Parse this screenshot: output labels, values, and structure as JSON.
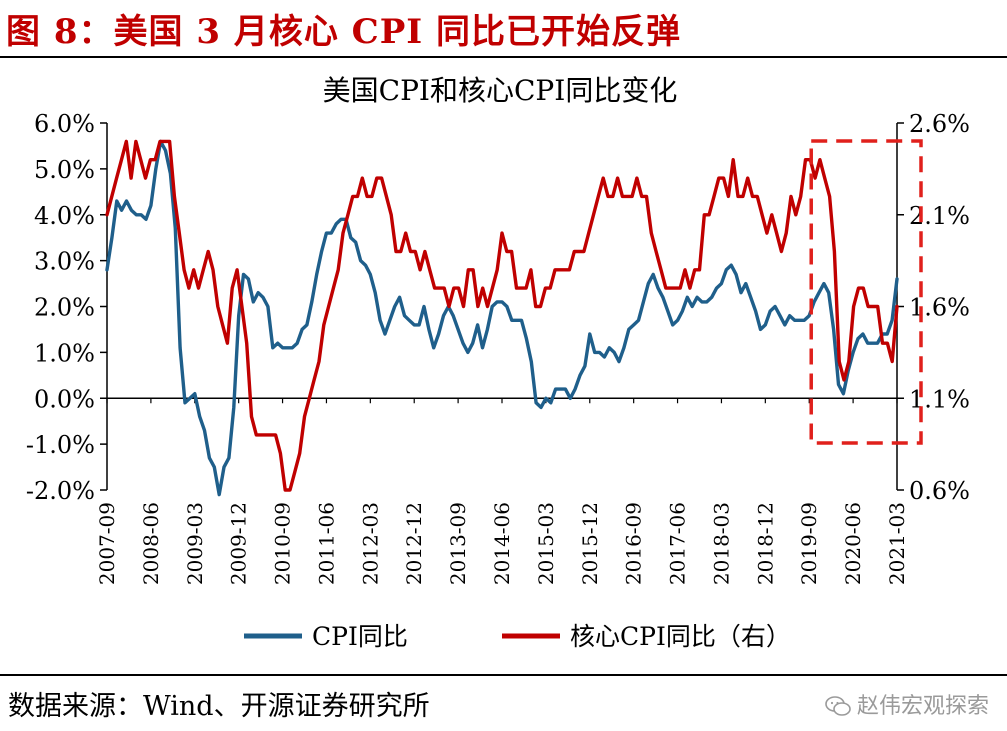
{
  "header": {
    "figure_title": "图 8：美国 3 月核心 CPI 同比已开始反弹"
  },
  "footer": {
    "source": "数据来源：Wind、开源证券研究所",
    "watermark": "赵伟宏观探索"
  },
  "colors": {
    "cpi": "#1f5f8b",
    "core_cpi": "#c00000",
    "highlight_box": "#e0201c",
    "title": "#c00000"
  },
  "chart_data": {
    "type": "line",
    "title": "美国CPI和核心CPI同比变化",
    "x_tick_labels": [
      "2007-09",
      "2008-06",
      "2009-03",
      "2009-12",
      "2010-09",
      "2011-06",
      "2012-03",
      "2012-12",
      "2013-09",
      "2014-06",
      "2015-03",
      "2015-12",
      "2016-09",
      "2017-06",
      "2018-03",
      "2018-12",
      "2019-09",
      "2020-06",
      "2021-03"
    ],
    "x_range": [
      "2007-09",
      "2021-03"
    ],
    "y_left": {
      "min": -2.0,
      "max": 6.0,
      "step": 1.0,
      "tick_labels": [
        "-2.0%",
        "-1.0%",
        "0.0%",
        "1.0%",
        "2.0%",
        "3.0%",
        "4.0%",
        "5.0%",
        "6.0%"
      ]
    },
    "y_right": {
      "min": 0.6,
      "max": 2.6,
      "step": 0.5,
      "tick_labels": [
        "0.6%",
        "1.1%",
        "1.6%",
        "2.1%",
        "2.6%"
      ]
    },
    "highlight_period": [
      "2019-09",
      "2021-03"
    ],
    "series": [
      {
        "name": "CPI同比",
        "axis": "left",
        "unit": "%",
        "values": [
          2.8,
          3.5,
          4.3,
          4.1,
          4.3,
          4.1,
          4.0,
          4.0,
          3.9,
          4.2,
          5.0,
          5.6,
          5.4,
          4.9,
          3.7,
          1.1,
          -0.1,
          0.0,
          0.1,
          -0.4,
          -0.7,
          -1.3,
          -1.5,
          -2.1,
          -1.5,
          -1.3,
          -0.2,
          1.8,
          2.7,
          2.6,
          2.1,
          2.3,
          2.2,
          2.0,
          1.1,
          1.2,
          1.1,
          1.1,
          1.1,
          1.2,
          1.5,
          1.6,
          2.1,
          2.7,
          3.2,
          3.6,
          3.6,
          3.8,
          3.9,
          3.9,
          3.5,
          3.4,
          3.0,
          2.9,
          2.7,
          2.3,
          1.7,
          1.4,
          1.7,
          2.0,
          2.2,
          1.8,
          1.7,
          1.6,
          1.6,
          2.0,
          1.5,
          1.1,
          1.4,
          1.8,
          2.0,
          1.8,
          1.5,
          1.2,
          1.0,
          1.2,
          1.6,
          1.1,
          1.5,
          2.0,
          2.1,
          2.1,
          2.0,
          1.7,
          1.7,
          1.7,
          1.3,
          0.8,
          -0.1,
          -0.2,
          0.0,
          -0.1,
          0.2,
          0.2,
          0.2,
          0.0,
          0.2,
          0.5,
          0.7,
          1.4,
          1.0,
          1.0,
          0.9,
          1.1,
          1.0,
          0.8,
          1.1,
          1.5,
          1.6,
          1.7,
          2.1,
          2.5,
          2.7,
          2.4,
          2.2,
          1.9,
          1.6,
          1.7,
          1.9,
          2.2,
          2.0,
          2.2,
          2.1,
          2.1,
          2.2,
          2.4,
          2.5,
          2.8,
          2.9,
          2.7,
          2.3,
          2.5,
          2.2,
          1.9,
          1.5,
          1.6,
          1.9,
          2.0,
          1.8,
          1.6,
          1.8,
          1.7,
          1.7,
          1.7,
          1.8,
          2.1,
          2.3,
          2.5,
          2.3,
          1.5,
          0.3,
          0.1,
          0.6,
          1.0,
          1.3,
          1.4,
          1.2,
          1.2,
          1.2,
          1.4,
          1.4,
          1.7,
          2.6
        ]
      },
      {
        "name": "核心CPI同比（右）",
        "axis": "right",
        "unit": "%",
        "values": [
          2.1,
          2.2,
          2.3,
          2.4,
          2.5,
          2.3,
          2.5,
          2.4,
          2.3,
          2.4,
          2.4,
          2.5,
          2.5,
          2.5,
          2.2,
          2.0,
          1.8,
          1.7,
          1.8,
          1.7,
          1.8,
          1.9,
          1.8,
          1.6,
          1.5,
          1.4,
          1.7,
          1.8,
          1.6,
          1.4,
          1.0,
          0.9,
          0.9,
          0.9,
          0.9,
          0.9,
          0.8,
          0.6,
          0.6,
          0.7,
          0.8,
          1.0,
          1.1,
          1.2,
          1.3,
          1.5,
          1.6,
          1.7,
          1.8,
          2.0,
          2.1,
          2.2,
          2.2,
          2.3,
          2.2,
          2.2,
          2.3,
          2.3,
          2.2,
          2.1,
          1.9,
          1.9,
          2.0,
          1.9,
          1.9,
          1.8,
          1.9,
          1.8,
          1.7,
          1.7,
          1.7,
          1.6,
          1.7,
          1.7,
          1.6,
          1.8,
          1.8,
          1.6,
          1.7,
          1.6,
          1.7,
          1.8,
          2.0,
          1.9,
          1.9,
          1.7,
          1.7,
          1.7,
          1.8,
          1.6,
          1.6,
          1.7,
          1.7,
          1.8,
          1.8,
          1.8,
          1.8,
          1.9,
          1.9,
          1.9,
          2.0,
          2.1,
          2.2,
          2.3,
          2.2,
          2.2,
          2.3,
          2.2,
          2.2,
          2.2,
          2.3,
          2.2,
          2.2,
          2.0,
          1.9,
          1.8,
          1.7,
          1.7,
          1.7,
          1.7,
          1.8,
          1.7,
          1.8,
          1.8,
          2.1,
          2.1,
          2.2,
          2.3,
          2.3,
          2.2,
          2.4,
          2.2,
          2.2,
          2.3,
          2.2,
          2.2,
          2.1,
          2.0,
          2.1,
          2.0,
          1.9,
          2.0,
          2.2,
          2.1,
          2.2,
          2.4,
          2.4,
          2.3,
          2.4,
          2.3,
          2.2,
          1.9,
          1.3,
          1.2,
          1.3,
          1.6,
          1.7,
          1.7,
          1.6,
          1.6,
          1.6,
          1.4,
          1.4,
          1.3,
          1.6
        ]
      }
    ]
  }
}
